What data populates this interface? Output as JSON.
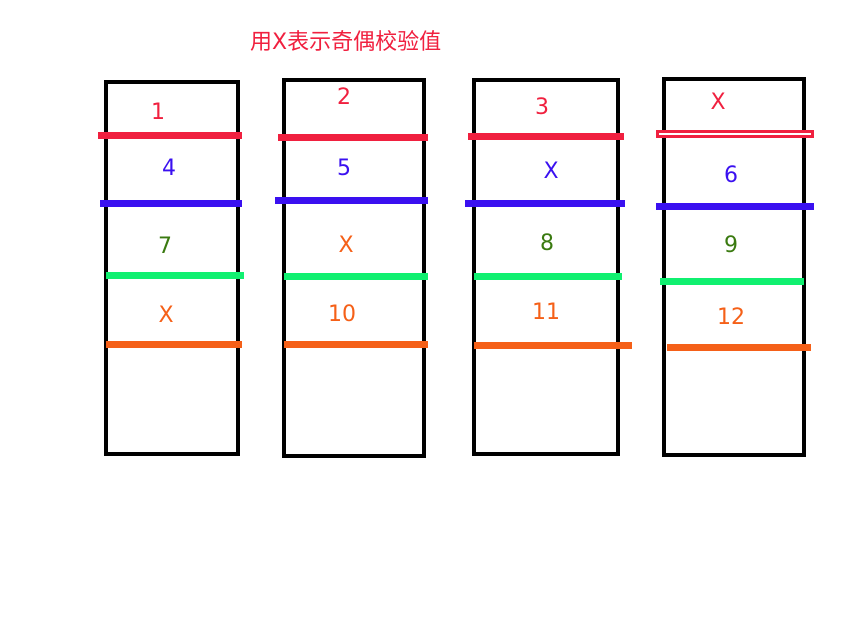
{
  "title": "用X表示奇偶校验值",
  "colors": {
    "title": "#f0203f",
    "row1": "#f0203f",
    "row2": "#3a10f0",
    "row3_bar": "#10f070",
    "row3_text": "#3a7a10",
    "row4": "#f56018",
    "border": "#000000"
  },
  "disks": [
    {
      "labels": [
        "1",
        "4",
        "7",
        "X"
      ]
    },
    {
      "labels": [
        "2",
        "5",
        "X",
        "10"
      ]
    },
    {
      "labels": [
        "3",
        "X",
        "8",
        "11"
      ]
    },
    {
      "labels": [
        "X",
        "6",
        "9",
        "12"
      ]
    }
  ]
}
